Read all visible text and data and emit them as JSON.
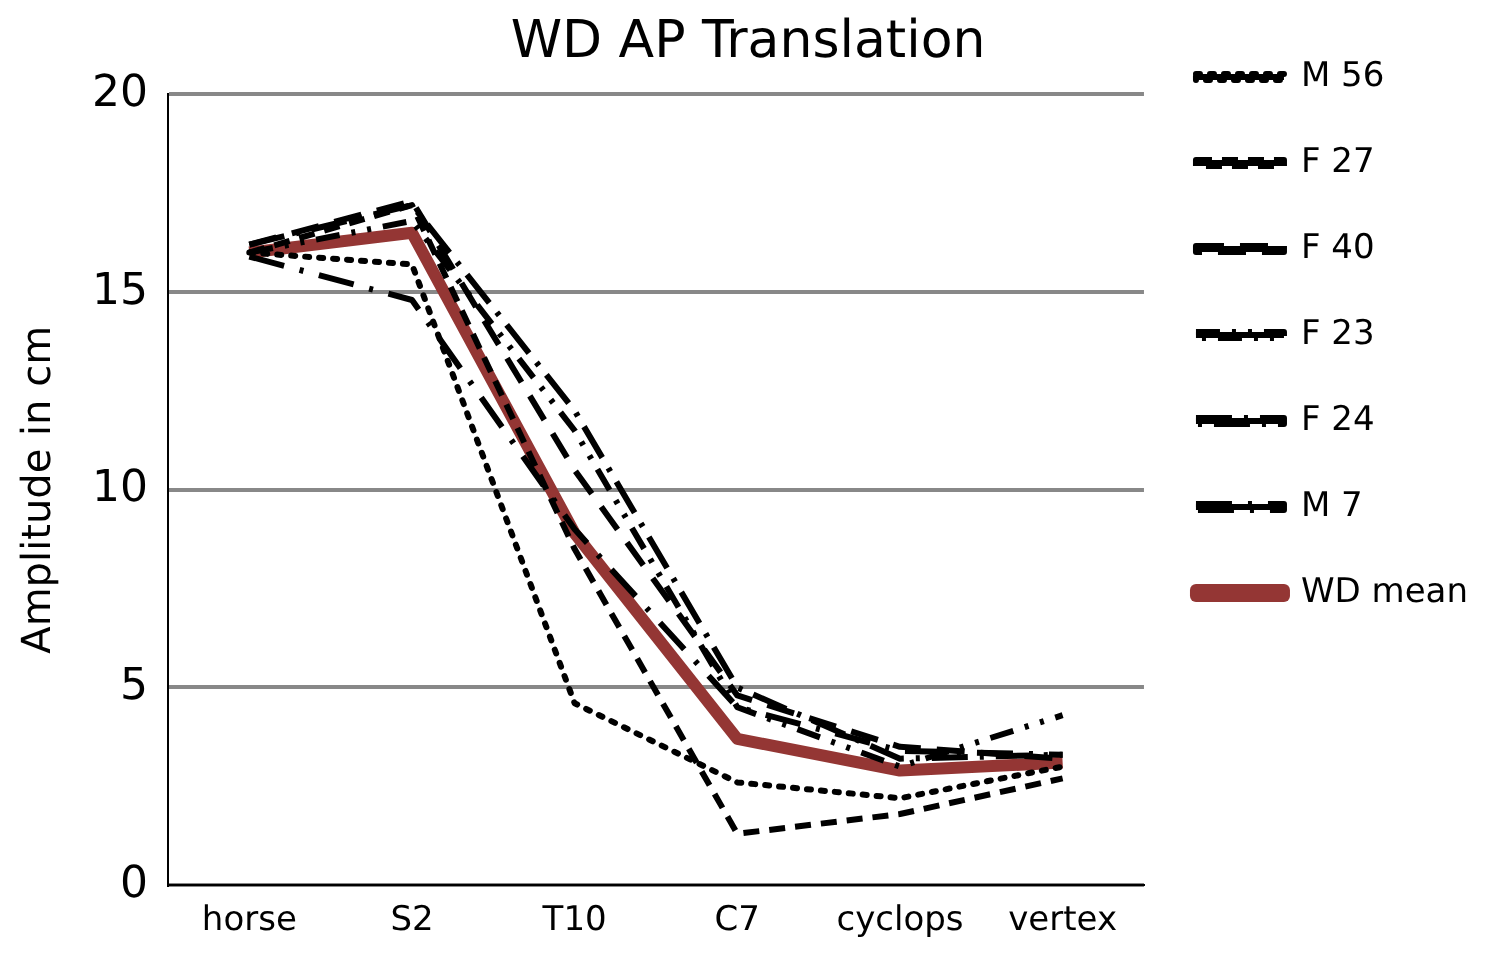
{
  "chart_data": {
    "type": "line",
    "title": "WD AP Translation",
    "ylabel": "Amplitude in cm",
    "categories": [
      "horse",
      "S2",
      "T10",
      "C7",
      "cyclops",
      "vertex"
    ],
    "ylim": [
      0,
      20
    ],
    "yticks": [
      0,
      5,
      10,
      15,
      20
    ],
    "grid": "y",
    "legend": "right",
    "marker": "none",
    "series": [
      {
        "name": "M 56",
        "color": "#000000",
        "line_style": "dotted",
        "values": [
          16,
          15.7,
          4.6,
          2.6,
          2.2,
          3.0
        ]
      },
      {
        "name": "F 27",
        "color": "#000000",
        "line_style": "dashed",
        "values": [
          16,
          17.2,
          8.5,
          1.3,
          1.8,
          2.7
        ]
      },
      {
        "name": "F 40",
        "color": "#000000",
        "line_style": "dashed",
        "values": [
          16.2,
          17.3,
          10.5,
          4.8,
          3.5,
          3.2
        ]
      },
      {
        "name": "F 23",
        "color": "#000000",
        "line_style": "dashed",
        "values": [
          16,
          16.8,
          11.5,
          4.5,
          3.0,
          4.3
        ]
      },
      {
        "name": "F 24",
        "color": "#000000",
        "line_style": "dashed",
        "values": [
          16.2,
          17.2,
          12,
          5,
          3.2,
          3.3
        ]
      },
      {
        "name": "M 7",
        "color": "#000000",
        "line_style": "dashed",
        "values": [
          15.9,
          14.8,
          9,
          4.5,
          3.4,
          3.3
        ]
      },
      {
        "name": "WD mean",
        "color": "#943634",
        "line_style": "solid",
        "values": [
          16,
          16.5,
          8.9,
          3.7,
          2.9,
          3.1
        ]
      }
    ]
  }
}
